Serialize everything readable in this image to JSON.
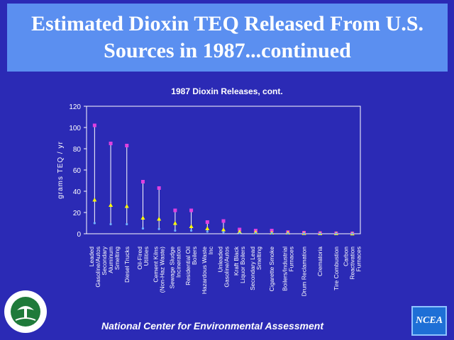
{
  "slide": {
    "title": "Estimated Dioxin TEQ Released From U.S.\nSources in 1987...continued",
    "footer": "National Center for Environmental Assessment",
    "logo_text": "NCEA",
    "seal_icon": "epa-seal-icon"
  },
  "colors": {
    "background": "#2b2ab5",
    "title_box": "#5b8ff0",
    "high_marker": "#e040e0",
    "mid_marker": "#ffff00",
    "low_marker": "#6fb0ff"
  },
  "chart_data": {
    "type": "scatter",
    "title": "1987 Dioxin Releases, cont.",
    "ylabel": "grams TEQ / yr",
    "xlabel": "",
    "ylim": [
      0,
      120
    ],
    "yticks": [
      0,
      20,
      40,
      60,
      80,
      100,
      120
    ],
    "grid": false,
    "categories": [
      "Leaded Gasoline/Autos",
      "Secondary Aluminum Smelting",
      "Diesel Trucks",
      "Oil-Fired Utilities",
      "Cement Kilns (Non-Haz Waste)",
      "Sewage Sludge Incineration",
      "Residential Oil Boilers",
      "Hazardous Waste Inc",
      "Unleaded Gasoline/Autos",
      "Kraft Black Liquor Boilers",
      "Secondary Lead Smelting",
      "Cigarette Smoke",
      "Boilers/Industrial Furnaces",
      "Drum Reclamation",
      "Crematoria",
      "Tire Combustion",
      "Carbon Reactivation Furnaces"
    ],
    "series": [
      {
        "values": [
          102,
          85,
          83,
          49,
          43,
          22,
          22,
          11,
          12,
          4,
          3,
          3,
          1.5,
          1,
          0.6,
          0.4,
          0.3
        ]
      },
      {
        "values": [
          32,
          27,
          26,
          15,
          14,
          10,
          7,
          5,
          4,
          2,
          1.5,
          1,
          1,
          0.5,
          0.3,
          0.3,
          0.2
        ]
      },
      {
        "values": [
          10,
          9,
          9,
          5,
          4.5,
          3,
          3,
          2,
          1.5,
          0.6,
          0.5,
          0.4,
          0.3,
          0.2,
          0.1,
          0.1,
          0.1
        ]
      }
    ]
  }
}
